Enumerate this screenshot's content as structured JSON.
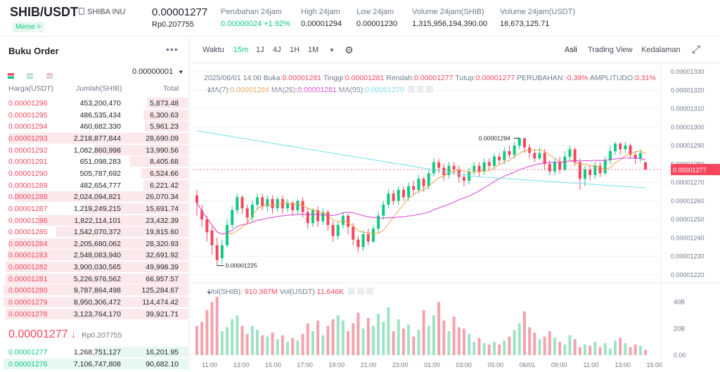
{
  "header": {
    "pair": "SHIB/USDT",
    "coin_name": "SHIBA INU",
    "tag": "Meme >",
    "last_price": "0.00001277",
    "last_price_idr": "Rp0.207755",
    "stats": [
      {
        "label": "Perubahan 24jam",
        "value": "0.00000024 +1.92%",
        "green": true
      },
      {
        "label": "High 24jam",
        "value": "0.00001294",
        "green": false
      },
      {
        "label": "Low 24jam",
        "value": "0.00001230",
        "green": false
      },
      {
        "label": "Volume 24jam(SHIB)",
        "value": "1,315,956,194,390.00",
        "green": false
      },
      {
        "label": "Volume 24jam(USDT)",
        "value": "16,673,125.71",
        "green": false
      }
    ]
  },
  "orderbook": {
    "title": "Buku Order",
    "precision": "0.00000001",
    "col_price": "Harga(USDT)",
    "col_amount": "Jumlah(SHIB)",
    "col_total": "Total",
    "asks": [
      [
        "0.00001296",
        "453,200,470",
        "5,873.48",
        0.22
      ],
      [
        "0.00001295",
        "486,535,434",
        "6,300.63",
        0.24
      ],
      [
        "0.00001294",
        "460,682,330",
        "5,961.23",
        0.23
      ],
      [
        "0.00001293",
        "2,218,877,844",
        "28,690.09",
        0.95
      ],
      [
        "0.00001292",
        "1,082,860,998",
        "13,990.56",
        0.5
      ],
      [
        "0.00001291",
        "651,098,283",
        "8,405.68",
        0.31
      ],
      [
        "0.00001290",
        "505,787,692",
        "6,524.66",
        0.25
      ],
      [
        "0.00001289",
        "482,654,777",
        "6,221.42",
        0.24
      ],
      [
        "0.00001288",
        "2,024,094,821",
        "26,070.34",
        0.92
      ],
      [
        "0.00001287",
        "1,219,249,215",
        "15,691.74",
        0.56
      ],
      [
        "0.00001286",
        "1,822,114,101",
        "23,432.39",
        0.8
      ],
      [
        "0.00001285",
        "1,542,070,372",
        "19,815.60",
        0.7
      ],
      [
        "0.00001284",
        "2,205,680,062",
        "28,320.93",
        0.95
      ],
      [
        "0.00001283",
        "2,548,083,940",
        "32,691.92",
        0.96
      ],
      [
        "0.00001282",
        "3,900,030,565",
        "49,998.39",
        0.97
      ],
      [
        "0.00001281",
        "5,226,976,562",
        "66,957.57",
        0.97
      ],
      [
        "0.00001280",
        "9,787,864,498",
        "125,284.67",
        0.98
      ],
      [
        "0.00001279",
        "8,950,306,472",
        "114,474.42",
        0.98
      ],
      [
        "0.00001278",
        "3,123,764,170",
        "39,921.71",
        0.97
      ]
    ],
    "mid_price": "0.00001277",
    "mid_idr": "Rp0.207755",
    "bids": [
      [
        "0.00001277",
        "1,268,751,127",
        "16,201.95",
        0.5
      ],
      [
        "0.00001276",
        "7,106,747,808",
        "90,682.10",
        0.98
      ]
    ]
  },
  "chart": {
    "toolbar_left": [
      "Waktu",
      "15m",
      "1J",
      "4J",
      "1H",
      "1M"
    ],
    "active_interval": "15m",
    "toolbar_right": [
      "Asli",
      "Trading View",
      "Kedalaman"
    ],
    "ohlc_text": "2025/06/01 14:00",
    "ohlc": [
      {
        "l": "Buka:",
        "v": "0.00001281"
      },
      {
        "l": "Tinggi:",
        "v": "0.00001281"
      },
      {
        "l": "Rendah:",
        "v": "0.00001277"
      },
      {
        "l": "Tutup:",
        "v": "0.00001277"
      },
      {
        "l": "PERUBAHAN:",
        "v": "-0.39%"
      },
      {
        "l": "AMPLITUDO:",
        "v": "0.31%"
      }
    ],
    "ma": [
      {
        "l": "MA(7):",
        "v": "0.00001284",
        "c": "#f0a04b"
      },
      {
        "l": "MA(25):",
        "v": "0.00001281",
        "c": "#d63fd6"
      },
      {
        "l": "MA(99):",
        "v": "0.00001270",
        "c": "#74e0ec"
      }
    ],
    "vol_label": "Vol(SHIB):",
    "vol_shib": "910.387M",
    "vol_usdt_label": "Vol(USDT)",
    "vol_usdt": "11.646K",
    "price_ticks": [
      "0.00001330",
      "0.00001320",
      "0.00001310",
      "0.00001300",
      "0.00001290",
      "0.00001280",
      "0.00001270",
      "0.00001260",
      "0.00001250",
      "0.00001240",
      "0.00001230",
      "0.00001220"
    ],
    "current_price_tag": "0.00001277",
    "high_label": "0.00001294",
    "low_label": "0.00001225",
    "vol_ticks": [
      "40B",
      "20B",
      "0.00"
    ],
    "time_ticks": [
      "11:00",
      "13:00",
      "15:00",
      "17:00",
      "19:00",
      "21:00",
      "23:00",
      "01:00",
      "03:00",
      "05:00",
      "06/01",
      "09:00",
      "11:00",
      "13:00",
      "15:00"
    ],
    "colors": {
      "up": "#0ecb81",
      "down": "#f6465d",
      "ma7": "#f0a04b",
      "ma25": "#d63fd6",
      "ma99": "#74e0ec"
    },
    "candles": [
      [
        1263,
        1259,
        1266,
        1252
      ],
      [
        1255,
        1250,
        1258,
        1246
      ],
      [
        1250,
        1243,
        1252,
        1238
      ],
      [
        1244,
        1236,
        1246,
        1231
      ],
      [
        1236,
        1228,
        1240,
        1225
      ],
      [
        1229,
        1236,
        1239,
        1226
      ],
      [
        1236,
        1247,
        1250,
        1235
      ],
      [
        1247,
        1255,
        1257,
        1245
      ],
      [
        1255,
        1262,
        1264,
        1253
      ],
      [
        1262,
        1256,
        1263,
        1253
      ],
      [
        1256,
        1251,
        1258,
        1248
      ],
      [
        1251,
        1258,
        1260,
        1249
      ],
      [
        1258,
        1262,
        1264,
        1255
      ],
      [
        1262,
        1257,
        1264,
        1255
      ],
      [
        1257,
        1261,
        1263,
        1254
      ],
      [
        1261,
        1256,
        1263,
        1253
      ],
      [
        1256,
        1261,
        1262,
        1254
      ],
      [
        1261,
        1256,
        1263,
        1253
      ],
      [
        1256,
        1259,
        1261,
        1254
      ],
      [
        1259,
        1255,
        1260,
        1252
      ],
      [
        1255,
        1260,
        1261,
        1253
      ],
      [
        1260,
        1254,
        1262,
        1251
      ],
      [
        1254,
        1248,
        1256,
        1245
      ],
      [
        1248,
        1255,
        1256,
        1246
      ],
      [
        1255,
        1249,
        1257,
        1246
      ],
      [
        1249,
        1254,
        1256,
        1247
      ],
      [
        1254,
        1247,
        1255,
        1244
      ],
      [
        1247,
        1241,
        1249,
        1238
      ],
      [
        1241,
        1247,
        1249,
        1239
      ],
      [
        1247,
        1252,
        1254,
        1245
      ],
      [
        1252,
        1246,
        1253,
        1242
      ],
      [
        1246,
        1239,
        1248,
        1236
      ],
      [
        1239,
        1235,
        1241,
        1232
      ],
      [
        1235,
        1242,
        1244,
        1233
      ],
      [
        1242,
        1238,
        1245,
        1236
      ],
      [
        1238,
        1245,
        1247,
        1237
      ],
      [
        1245,
        1252,
        1254,
        1243
      ],
      [
        1252,
        1258,
        1260,
        1250
      ],
      [
        1258,
        1264,
        1266,
        1256
      ],
      [
        1264,
        1260,
        1266,
        1258
      ],
      [
        1260,
        1266,
        1268,
        1258
      ],
      [
        1266,
        1262,
        1268,
        1260
      ],
      [
        1262,
        1268,
        1270,
        1260
      ],
      [
        1268,
        1266,
        1271,
        1263
      ],
      [
        1266,
        1272,
        1274,
        1264
      ],
      [
        1272,
        1268,
        1273,
        1265
      ],
      [
        1268,
        1275,
        1277,
        1266
      ],
      [
        1275,
        1281,
        1283,
        1273
      ],
      [
        1281,
        1278,
        1283,
        1275
      ],
      [
        1278,
        1274,
        1280,
        1271
      ],
      [
        1274,
        1279,
        1281,
        1272
      ],
      [
        1279,
        1277,
        1281,
        1274
      ],
      [
        1277,
        1273,
        1279,
        1270
      ],
      [
        1273,
        1271,
        1275,
        1268
      ],
      [
        1271,
        1276,
        1278,
        1269
      ],
      [
        1276,
        1279,
        1281,
        1274
      ],
      [
        1279,
        1276,
        1281,
        1273
      ],
      [
        1276,
        1281,
        1283,
        1274
      ],
      [
        1281,
        1279,
        1283,
        1277
      ],
      [
        1279,
        1284,
        1286,
        1277
      ],
      [
        1284,
        1282,
        1286,
        1280
      ],
      [
        1282,
        1287,
        1289,
        1280
      ],
      [
        1287,
        1285,
        1290,
        1283
      ],
      [
        1285,
        1290,
        1292,
        1283
      ],
      [
        1290,
        1294,
        1294,
        1288
      ],
      [
        1294,
        1289,
        1294,
        1286
      ],
      [
        1289,
        1286,
        1291,
        1283
      ],
      [
        1286,
        1283,
        1288,
        1281
      ],
      [
        1283,
        1286,
        1289,
        1282
      ],
      [
        1286,
        1280,
        1288,
        1277
      ],
      [
        1280,
        1276,
        1282,
        1274
      ],
      [
        1276,
        1281,
        1283,
        1274
      ],
      [
        1281,
        1277,
        1284,
        1275
      ],
      [
        1277,
        1284,
        1287,
        1276
      ],
      [
        1284,
        1288,
        1290,
        1282
      ],
      [
        1288,
        1281,
        1289,
        1279
      ],
      [
        1281,
        1272,
        1283,
        1266
      ],
      [
        1272,
        1277,
        1279,
        1268
      ],
      [
        1277,
        1274,
        1279,
        1271
      ],
      [
        1274,
        1279,
        1281,
        1272
      ],
      [
        1279,
        1275,
        1281,
        1273
      ],
      [
        1275,
        1282,
        1284,
        1274
      ],
      [
        1282,
        1287,
        1290,
        1280
      ],
      [
        1287,
        1291,
        1292,
        1285
      ],
      [
        1291,
        1288,
        1292,
        1285
      ],
      [
        1288,
        1290,
        1292,
        1286
      ],
      [
        1290,
        1285,
        1291,
        1283
      ],
      [
        1285,
        1283,
        1287,
        1280
      ],
      [
        1283,
        1286,
        1288,
        1281
      ],
      [
        1281,
        1277,
        1281,
        1277
      ]
    ],
    "volumes": [
      22,
      25,
      34,
      40,
      44,
      18,
      21,
      27,
      30,
      22,
      16,
      22,
      19,
      15,
      14,
      17,
      12,
      15,
      10,
      13,
      11,
      16,
      24,
      18,
      26,
      15,
      22,
      27,
      30,
      26,
      18,
      24,
      32,
      20,
      28,
      22,
      31,
      25,
      36,
      18,
      27,
      20,
      23,
      14,
      19,
      34,
      22,
      30,
      40,
      26,
      18,
      29,
      21,
      20,
      16,
      10,
      13,
      9,
      8,
      10,
      8,
      11,
      14,
      19,
      24,
      33,
      21,
      17,
      12,
      14,
      18,
      13,
      10,
      8,
      15,
      12,
      6,
      8,
      7,
      10,
      6,
      9,
      5,
      11,
      13,
      9,
      6,
      8,
      7,
      4
    ]
  }
}
